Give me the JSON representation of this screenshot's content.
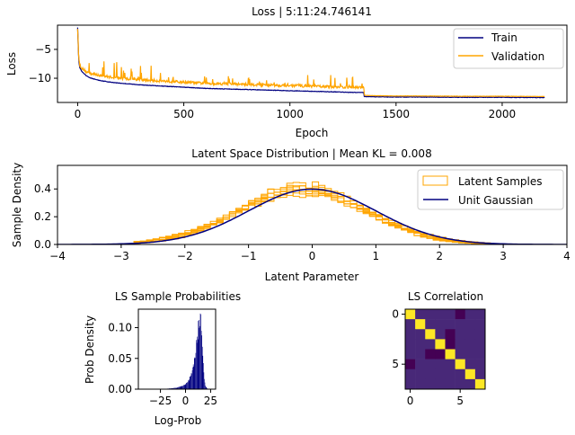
{
  "figure": {
    "background": "#ffffff"
  },
  "chart_data": [
    {
      "type": "line",
      "title": "Loss | 5:11:24.746141",
      "xlabel": "Epoch",
      "ylabel": "Loss",
      "xlim": [
        -95,
        2305
      ],
      "ylim": [
        -14.2,
        -0.8
      ],
      "xticks": [
        0,
        500,
        1000,
        1500,
        2000
      ],
      "yticks": [
        -5,
        -10
      ],
      "grid": false,
      "legend": "top-right",
      "series": [
        {
          "name": "Train",
          "color": "#000080",
          "x": [
            0,
            5,
            10,
            20,
            40,
            60,
            100,
            150,
            200,
            300,
            400,
            500,
            600,
            700,
            800,
            900,
            1000,
            1100,
            1200,
            1300,
            1349,
            1350,
            1400,
            1500,
            1600,
            1800,
            2000,
            2200
          ],
          "y": [
            -1.2,
            -7.0,
            -8.2,
            -8.9,
            -9.6,
            -10.0,
            -10.4,
            -10.7,
            -10.9,
            -11.2,
            -11.4,
            -11.6,
            -11.8,
            -11.9,
            -12.0,
            -12.1,
            -12.2,
            -12.3,
            -12.4,
            -12.5,
            -12.5,
            -13.2,
            -13.25,
            -13.3,
            -13.3,
            -13.35,
            -13.35,
            -13.4
          ]
        },
        {
          "name": "Validation",
          "color": "#ffa500",
          "x": [
            0,
            5,
            10,
            20,
            40,
            60,
            100,
            150,
            200,
            300,
            400,
            500,
            600,
            700,
            800,
            900,
            1000,
            1100,
            1200,
            1300,
            1349,
            1350,
            1400,
            1500,
            1600,
            1800,
            2000,
            2200
          ],
          "y": [
            -1.5,
            -6.8,
            -7.9,
            -8.5,
            -9.1,
            -9.4,
            -9.7,
            -10.0,
            -10.2,
            -10.5,
            -10.7,
            -10.9,
            -11.1,
            -11.2,
            -11.3,
            -11.4,
            -11.5,
            -11.6,
            -11.7,
            -11.8,
            -11.8,
            -13.0,
            -13.05,
            -13.1,
            -13.1,
            -13.15,
            -13.15,
            -13.2
          ],
          "noise": {
            "x_range": [
              0,
              1350
            ],
            "max_spike": 3.0
          }
        }
      ]
    },
    {
      "type": "area",
      "title": "Latent Space Distribution | Mean KL = 0.008",
      "xlabel": "Latent Parameter",
      "ylabel": "Sample Density",
      "xlim": [
        -4,
        4
      ],
      "ylim": [
        0,
        0.57
      ],
      "xticks": [
        -4,
        -3,
        -2,
        -1,
        0,
        1,
        2,
        3,
        4
      ],
      "yticks": [
        0.0,
        0.2,
        0.4
      ],
      "grid": false,
      "legend": "top-right",
      "series": [
        {
          "name": "Latent Samples",
          "color": "#ffa500",
          "kind": "step-histograms",
          "count": 8,
          "center": 0.0,
          "sigma": 1.0,
          "bin_width": 0.1
        },
        {
          "name": "Unit Gaussian",
          "color": "#000080",
          "kind": "curve",
          "mean": 0.0,
          "sigma": 1.0
        }
      ]
    },
    {
      "type": "bar",
      "title": "LS Sample Probabilities",
      "xlabel": "Log-Prob",
      "ylabel": "Prob Density",
      "xlim": [
        -47,
        30
      ],
      "ylim": [
        0,
        0.13
      ],
      "xticks": [
        -25,
        0,
        25
      ],
      "yticks": [
        0.0,
        0.05,
        0.1
      ],
      "color": "#000080",
      "bin_width": 0.5,
      "x": [
        -40,
        -30,
        -20,
        -10,
        -5,
        0,
        2,
        4,
        6,
        8,
        10,
        11,
        12,
        13,
        14,
        15,
        16,
        17,
        18,
        19,
        20,
        22
      ],
      "values": [
        0.0002,
        0.0003,
        0.0005,
        0.002,
        0.004,
        0.008,
        0.012,
        0.018,
        0.028,
        0.04,
        0.06,
        0.075,
        0.09,
        0.1,
        0.112,
        0.124,
        0.095,
        0.06,
        0.03,
        0.012,
        0.004,
        0.0005
      ]
    },
    {
      "type": "heatmap",
      "title": "LS Correlation",
      "xticks": [
        0,
        5
      ],
      "yticks": [
        0,
        5
      ],
      "colormap": [
        "#440154",
        "#482878",
        "#3e4989",
        "#31688e",
        "#26828e",
        "#1f9e89",
        "#35b779",
        "#6ece58",
        "#b5de2b",
        "#fde725"
      ],
      "range": [
        -0.1,
        1.0
      ],
      "values": [
        [
          1.0,
          0.02,
          -0.02,
          0.03,
          0.01,
          -0.04,
          0.02,
          0.0
        ],
        [
          0.02,
          1.0,
          0.01,
          -0.03,
          0.02,
          0.03,
          -0.02,
          0.01
        ],
        [
          -0.02,
          0.01,
          1.0,
          0.02,
          -0.05,
          0.01,
          0.03,
          -0.01
        ],
        [
          0.03,
          -0.03,
          0.02,
          1.0,
          -0.08,
          0.02,
          -0.01,
          0.02
        ],
        [
          0.01,
          0.02,
          -0.05,
          -0.08,
          1.0,
          0.0,
          0.02,
          -0.03
        ],
        [
          -0.04,
          0.03,
          0.01,
          0.02,
          0.0,
          1.0,
          0.01,
          0.03
        ],
        [
          0.02,
          -0.02,
          0.03,
          -0.01,
          0.02,
          0.01,
          1.0,
          0.02
        ],
        [
          0.0,
          0.01,
          -0.01,
          0.02,
          -0.03,
          0.03,
          0.02,
          1.0
        ]
      ]
    }
  ]
}
